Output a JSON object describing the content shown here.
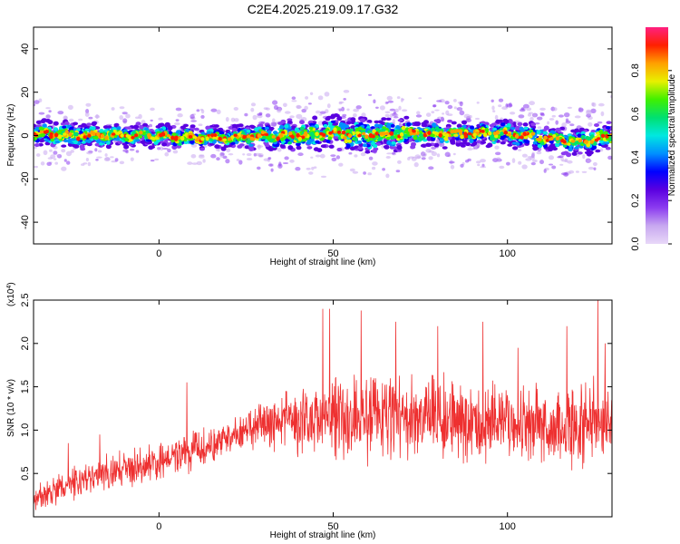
{
  "title": "C2E4.2025.219.09.17.G32",
  "chart_data": [
    {
      "type": "heatmap",
      "xlabel": "Height of straight line (km)",
      "ylabel": "Frequency (Hz)",
      "xlim": [
        -36,
        130
      ],
      "ylim": [
        -50,
        50
      ],
      "xticks": [
        0,
        50,
        100
      ],
      "yticks": [
        -40,
        -20,
        0,
        20,
        40
      ],
      "grid": false,
      "colorbar": {
        "label": "Normalized spectral amplitude",
        "range": [
          0,
          1
        ],
        "ticks": [
          "0.0",
          "0.2",
          "0.4",
          "0.6",
          "0.8"
        ],
        "colormap": [
          "#e8d8f8",
          "#c8a8f0",
          "#8c3cf0",
          "#5a00e0",
          "#0000ff",
          "#0090ff",
          "#00e8e0",
          "#00e070",
          "#40f000",
          "#e8f000",
          "#ffa000",
          "#ff2000",
          "#ff2080"
        ]
      },
      "ridge": {
        "description_values": "frequency ridge near 0 Hz across all heights",
        "x": [
          -36,
          -25,
          -15,
          -5,
          0,
          10,
          20,
          30,
          40,
          50,
          60,
          70,
          80,
          90,
          100,
          110,
          120,
          130
        ],
        "center": [
          1,
          0,
          0,
          0,
          0,
          -1,
          -1,
          0,
          0,
          1,
          0,
          1,
          1,
          1,
          1,
          -1,
          -3,
          0
        ],
        "halfwidth": [
          6,
          6,
          5,
          5,
          5,
          5,
          5,
          6,
          7,
          8,
          8,
          7,
          6,
          6,
          6,
          6,
          6,
          7
        ]
      }
    },
    {
      "type": "line",
      "xlabel": "Height of straight line (km)",
      "ylabel": "SNR (10 * v/v)",
      "yscale_label": "(x10",
      "yscale_exp": "4",
      "yscale_close": ")",
      "xlim": [
        -36,
        130
      ],
      "ylim": [
        0,
        2.5
      ],
      "xticks": [
        0,
        50,
        100
      ],
      "yticks": [
        "0.5",
        "1.0",
        "1.5",
        "2.0",
        "2.5"
      ],
      "grid": false,
      "series": [
        {
          "color": "#ee3030",
          "trend_x": [
            -36,
            -20,
            0,
            10,
            20,
            30,
            40,
            50,
            60,
            70,
            80,
            90,
            100,
            110,
            120,
            130
          ],
          "trend_y": [
            0.2,
            0.45,
            0.65,
            0.75,
            0.9,
            1.05,
            1.12,
            1.15,
            1.15,
            1.15,
            1.12,
            1.1,
            1.1,
            1.05,
            1.05,
            1.1
          ],
          "spread": [
            0.15,
            0.18,
            0.2,
            0.2,
            0.18,
            0.25,
            0.35,
            0.45,
            0.45,
            0.45,
            0.45,
            0.45,
            0.4,
            0.4,
            0.45,
            0.45
          ],
          "peaks": [
            [
              -26,
              0.85
            ],
            [
              -17,
              0.95
            ],
            [
              8,
              1.55
            ],
            [
              47,
              2.4
            ],
            [
              49,
              2.4
            ],
            [
              58,
              2.38
            ],
            [
              68,
              2.25
            ],
            [
              80,
              2.2
            ],
            [
              93,
              2.25
            ],
            [
              103,
              1.95
            ],
            [
              117,
              2.2
            ],
            [
              126,
              2.5
            ],
            [
              128,
              2.0
            ]
          ]
        }
      ]
    }
  ]
}
